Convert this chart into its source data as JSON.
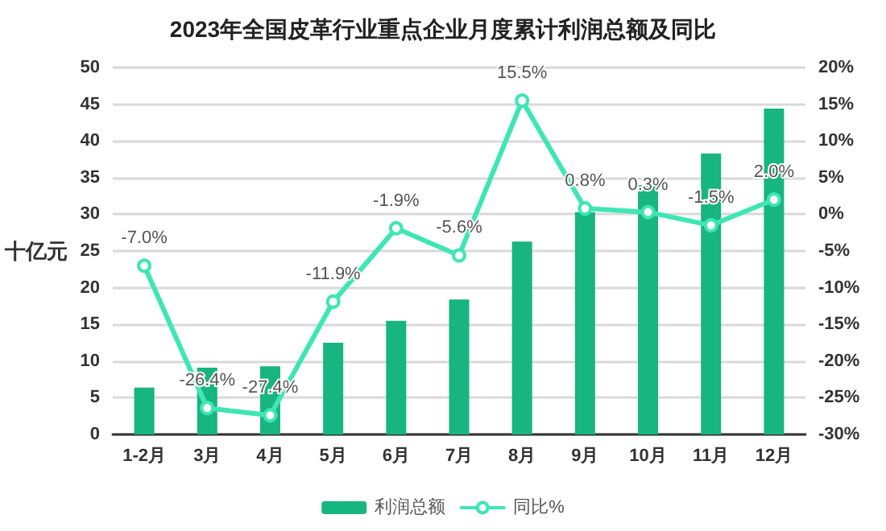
{
  "chart_data": {
    "type": "bar",
    "title": "2023年全国皮革行业重点企业月度累计利润总额及同比",
    "ylabel": "十亿元",
    "categories": [
      "1-2月",
      "3月",
      "4月",
      "5月",
      "6月",
      "7月",
      "8月",
      "9月",
      "10月",
      "11月",
      "12月"
    ],
    "series": [
      {
        "name": "利润总额",
        "color": "#17b57f",
        "values": [
          6.4,
          9.1,
          9.3,
          12.5,
          15.5,
          18.4,
          26.3,
          30.3,
          34.0,
          38.3,
          44.4
        ]
      },
      {
        "name": "同比%",
        "type": "line",
        "axis": "y2",
        "color": "#3ee6b4",
        "marker": "circle",
        "values": [
          -7.0,
          -26.4,
          -27.4,
          -11.9,
          -1.9,
          -5.6,
          15.5,
          0.8,
          0.3,
          -1.5,
          2.0
        ],
        "value_labels": [
          "-7.0%",
          "-26.4%",
          "-27.4%",
          "-11.9%",
          "-1.9%",
          "-5.6%",
          "15.5%",
          "0.8%",
          "0.3%",
          "-1.5%",
          "2.0%"
        ]
      }
    ],
    "ylim": [
      0,
      50
    ],
    "yticks": [
      0,
      5,
      10,
      15,
      20,
      25,
      30,
      35,
      40,
      45,
      50
    ],
    "y2lim": [
      -30,
      20
    ],
    "y2ticks": [
      {
        "value": -30,
        "label": "-30%"
      },
      {
        "value": -25,
        "label": "-25%"
      },
      {
        "value": -20,
        "label": "-20%"
      },
      {
        "value": -15,
        "label": "-15%"
      },
      {
        "value": -10,
        "label": "-10%"
      },
      {
        "value": -5,
        "label": "-5%"
      },
      {
        "value": 0,
        "label": "0%"
      },
      {
        "value": 5,
        "label": "5%"
      },
      {
        "value": 10,
        "label": "10%"
      },
      {
        "value": 15,
        "label": "15%"
      },
      {
        "value": 20,
        "label": "20%"
      }
    ],
    "grid": "y",
    "legend": "bottom"
  }
}
